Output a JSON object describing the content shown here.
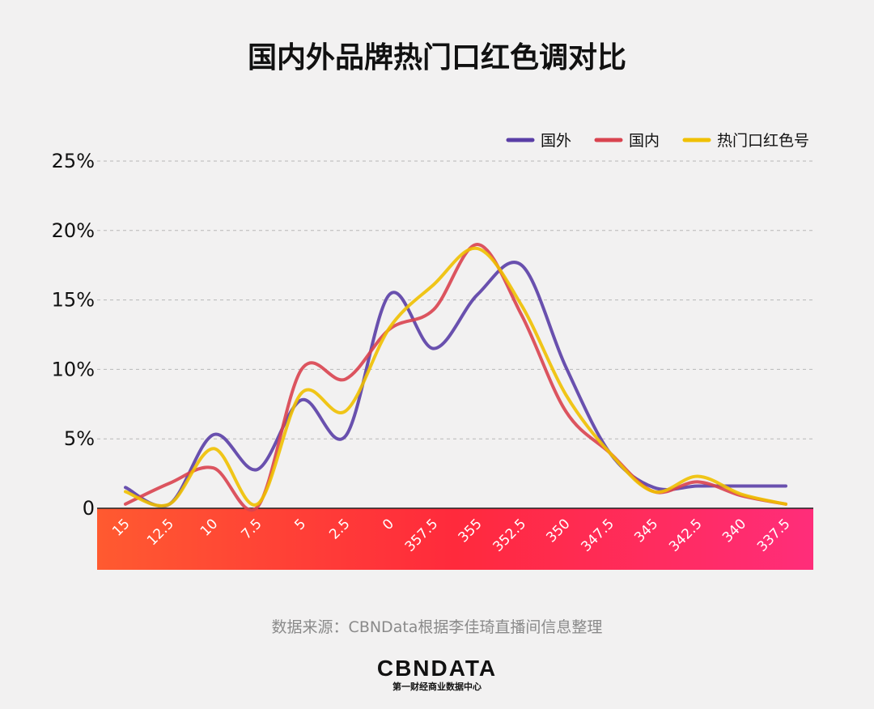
{
  "chart_data": {
    "type": "line",
    "title": "国内外品牌热门口红色调对比",
    "categories": [
      "15",
      "12.5",
      "10",
      "7.5",
      "5",
      "2.5",
      "0",
      "357.5",
      "355",
      "352.5",
      "350",
      "347.5",
      "345",
      "342.5",
      "340",
      "337.5"
    ],
    "ylim": [
      0,
      25
    ],
    "yticks": [
      0,
      5,
      10,
      15,
      20,
      25
    ],
    "ytick_labels": [
      "0",
      "5%",
      "10%",
      "15%",
      "20%",
      "25%"
    ],
    "grid": true,
    "smooth": true,
    "legend_position": "top-right",
    "series": [
      {
        "name": "国外",
        "color": "#5a3ea6",
        "values": [
          1.5,
          0.3,
          5.3,
          2.8,
          7.8,
          5.2,
          15.4,
          11.5,
          15.4,
          17.5,
          10.2,
          4.0,
          1.5,
          1.6,
          1.6,
          1.6
        ]
      },
      {
        "name": "国内",
        "color": "#d9434f",
        "values": [
          0.3,
          1.8,
          2.9,
          0.1,
          10.0,
          9.3,
          12.9,
          14.3,
          19.0,
          13.9,
          7.0,
          4.0,
          1.2,
          1.9,
          0.9,
          0.3
        ]
      },
      {
        "name": "热门口红色号",
        "color": "#f0c000",
        "values": [
          1.2,
          0.3,
          4.3,
          0.3,
          8.3,
          7.0,
          13.0,
          16.1,
          18.7,
          14.6,
          8.2,
          4.0,
          1.2,
          2.3,
          1.0,
          0.3
        ]
      }
    ],
    "axis_band_colors": [
      "#ff5a30",
      "#ff2a3c",
      "#ff2d7a"
    ]
  },
  "source": "数据来源：CBNData根据李佳琦直播间信息整理",
  "logo": {
    "name": "CBNDATA",
    "sub": "第一财经商业数据中心"
  }
}
